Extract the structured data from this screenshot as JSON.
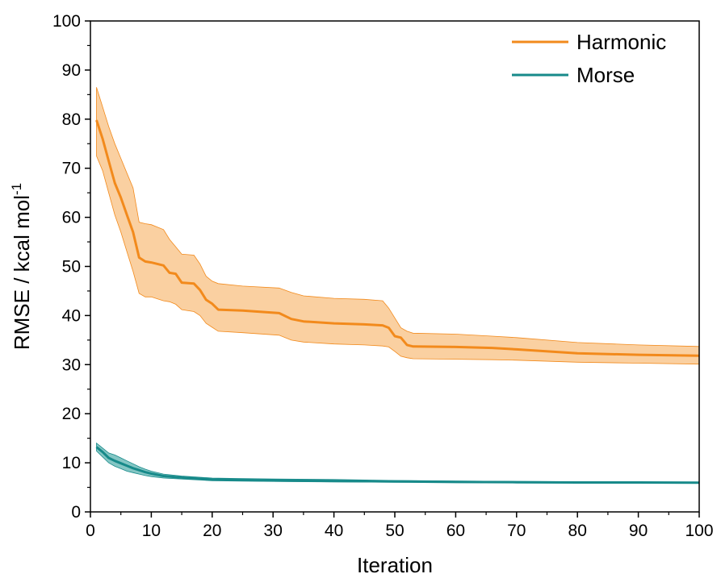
{
  "chart_data": {
    "type": "line",
    "xlabel": "Iteration",
    "ylabel_main": "RMSE / kcal mol",
    "ylabel_sup": "-1",
    "xlim": [
      0,
      100
    ],
    "ylim": [
      0,
      100
    ],
    "xticks": [
      0,
      10,
      20,
      30,
      40,
      50,
      60,
      70,
      80,
      90,
      100
    ],
    "yticks": [
      0,
      10,
      20,
      30,
      40,
      50,
      60,
      70,
      80,
      90,
      100
    ],
    "legend_position": "top-right",
    "grid": false,
    "series": [
      {
        "name": "Harmonic",
        "color": "#f28a1c",
        "band_color": "#f9c891",
        "x": [
          1,
          2,
          3,
          4,
          5,
          6,
          7,
          8,
          9,
          10,
          12,
          13,
          14,
          15,
          17,
          18,
          19,
          20,
          21,
          25,
          31,
          33,
          35,
          40,
          45,
          48,
          49,
          50,
          51,
          52,
          53,
          60,
          66,
          70,
          80,
          90,
          100
        ],
        "mean": [
          79.8,
          76,
          71.5,
          67,
          64,
          60.5,
          57,
          51.8,
          51,
          50.8,
          50.2,
          48.7,
          48.5,
          46.7,
          46.5,
          45.2,
          43.2,
          42.4,
          41.2,
          41,
          40.5,
          39.3,
          38.8,
          38.4,
          38.2,
          38,
          37.5,
          35.8,
          35.5,
          34,
          33.7,
          33.6,
          33.4,
          33.1,
          32.3,
          32,
          31.8
        ],
        "upper": [
          86.5,
          82.5,
          78.5,
          75,
          72,
          69,
          66,
          59,
          58.7,
          58.5,
          57.5,
          55.5,
          54,
          52.5,
          52.3,
          50.5,
          48,
          47,
          46.5,
          46,
          45.6,
          44.7,
          44,
          43.5,
          43.3,
          43,
          41.5,
          39.5,
          37.5,
          36.8,
          36.4,
          36.2,
          35.8,
          35.5,
          34.5,
          34,
          33.7
        ],
        "lower": [
          72.5,
          69.5,
          65,
          60.5,
          57,
          53,
          49,
          44.5,
          43.8,
          43.8,
          43,
          42.8,
          42.3,
          41.2,
          40.8,
          40,
          38.4,
          37.6,
          36.8,
          36.5,
          36,
          35,
          34.6,
          34.2,
          34,
          33.8,
          33.6,
          32.7,
          31.7,
          31.4,
          31.2,
          31.1,
          31,
          30.9,
          30.5,
          30.3,
          30.1
        ]
      },
      {
        "name": "Morse",
        "color": "#178a8a",
        "band_color": "#6fbcba",
        "x": [
          1,
          2,
          3,
          4,
          5,
          6,
          7,
          8,
          9,
          10,
          12,
          15,
          20,
          25,
          30,
          40,
          50,
          60,
          70,
          80,
          90,
          100
        ],
        "mean": [
          13.2,
          12.2,
          11,
          10.4,
          9.9,
          9.4,
          8.9,
          8.5,
          8.1,
          7.8,
          7.3,
          7,
          6.6,
          6.5,
          6.4,
          6.3,
          6.2,
          6.1,
          6.05,
          6,
          6,
          5.95
        ],
        "upper": [
          14,
          13,
          12,
          11.6,
          11,
          10.4,
          9.8,
          9.2,
          8.7,
          8.3,
          7.7,
          7.3,
          6.9,
          6.8,
          6.7,
          6.6,
          6.4,
          6.3,
          6.2,
          6.15,
          6.1,
          6.1
        ],
        "lower": [
          12.4,
          11.2,
          10,
          9.3,
          8.8,
          8.3,
          8,
          7.7,
          7.4,
          7.2,
          6.9,
          6.7,
          6.35,
          6.25,
          6.2,
          6.1,
          6.05,
          6,
          5.95,
          5.9,
          5.88,
          5.85
        ]
      }
    ]
  }
}
